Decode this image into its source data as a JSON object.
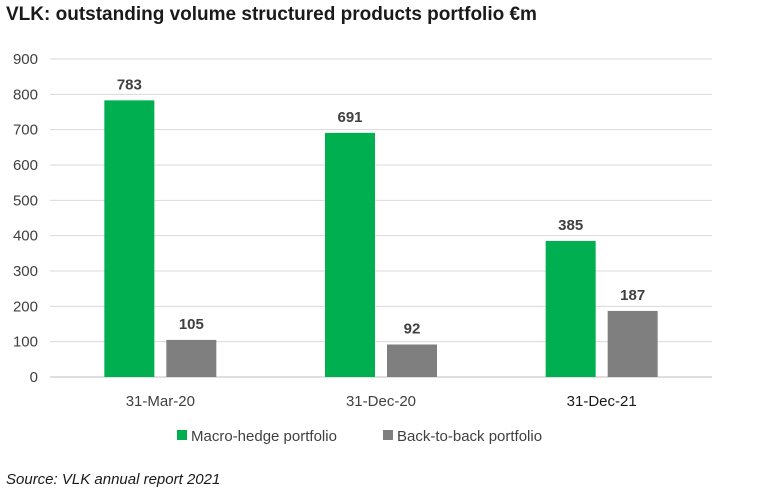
{
  "source": "Source: VLK annual report 2021",
  "colors": {
    "macro": "#00b050",
    "back": "#7f7f7f",
    "grid": "#d9d9d9",
    "text": "#404040"
  },
  "chart_data": {
    "type": "bar",
    "title": "VLK: outstanding volume structured products portfolio €m",
    "categories": [
      "31-Mar-20",
      "31-Dec-20",
      "31-Dec-21"
    ],
    "series": [
      {
        "name": "Macro-hedge portfolio",
        "values": [
          783,
          691,
          385
        ]
      },
      {
        "name": "Back-to-back portfolio",
        "values": [
          105,
          92,
          187
        ]
      }
    ],
    "ylim": [
      0,
      900
    ],
    "yticks": [
      0,
      100,
      200,
      300,
      400,
      500,
      600,
      700,
      800,
      900
    ],
    "grid": true,
    "legend": "bottom-center",
    "data_labels": true
  }
}
